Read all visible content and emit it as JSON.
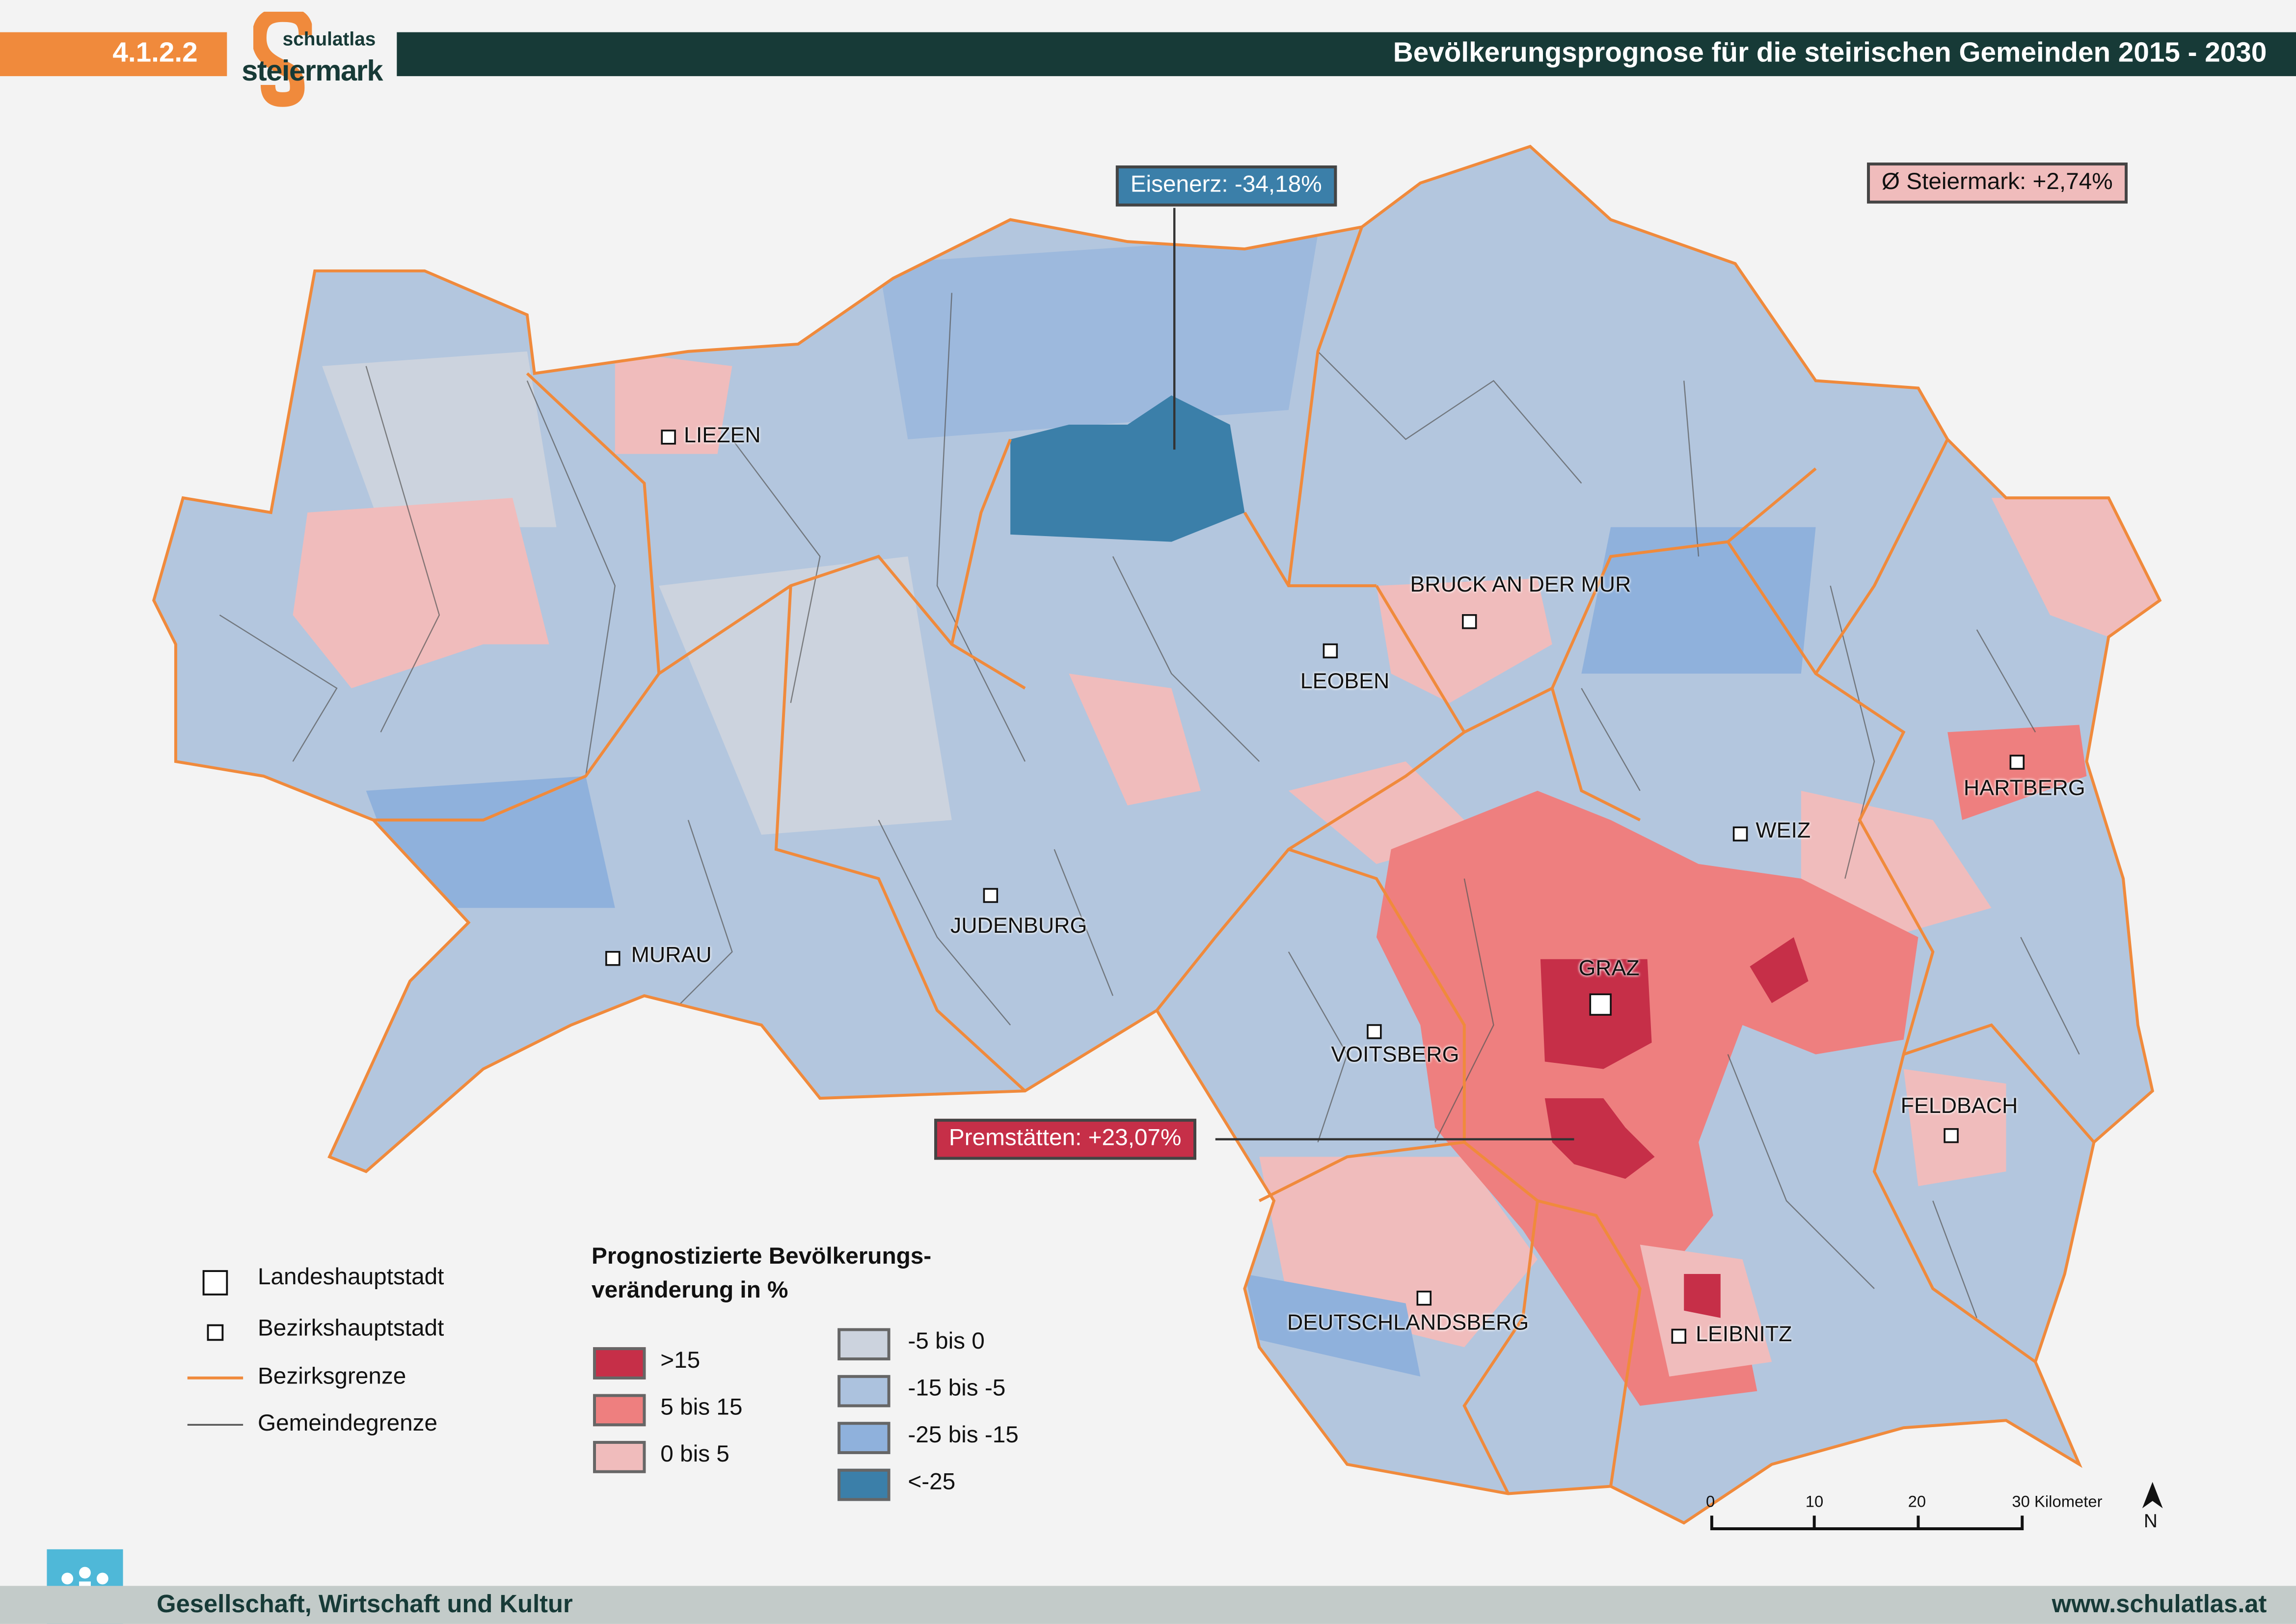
{
  "header": {
    "section_number": "4.1.2.2",
    "logo_text_top": "schulatlas",
    "logo_text_bottom": "steiermark",
    "logo_letter": "S",
    "title": "Bevölkerungsprognose für die steirischen Gemeinden 2015 - 2030"
  },
  "callouts": {
    "eisenerz": "Eisenerz: -34,18%",
    "premstaetten": "Premstätten: +23,07%",
    "average": "Ø Steiermark: +2,74%"
  },
  "cities": {
    "liezen": "LIEZEN",
    "bruck": "BRUCK AN DER MUR",
    "leoben": "LEOBEN",
    "hartberg": "HARTBERG",
    "weiz": "WEIZ",
    "judenburg": "JUDENBURG",
    "murau": "MURAU",
    "graz": "GRAZ",
    "voitsberg": "VOITSBERG",
    "feldbach": "FELDBACH",
    "deutschlandsberg": "DEUTSCHLANDSBERG",
    "leibnitz": "LEIBNITZ"
  },
  "legend_symbols": {
    "capital": "Landeshauptstadt",
    "district_capital": "Bezirkshauptstadt",
    "district_border": "Bezirksgrenze",
    "municipality_border": "Gemeindegrenze"
  },
  "legend": {
    "title_line1": "Prognostizierte Bevölkerungs-",
    "title_line2": "veränderung in %",
    "classes": [
      {
        "label": ">15",
        "color": "#c62f48"
      },
      {
        "label": "5 bis 15",
        "color": "#ee7f7f"
      },
      {
        "label": "0 bis 5",
        "color": "#f0bcbc"
      },
      {
        "label": "-5 bis 0",
        "color": "#ccd3de"
      },
      {
        "label": "-15 bis -5",
        "color": "#acc2de"
      },
      {
        "label": "-25 bis -15",
        "color": "#8fb1dc"
      },
      {
        "label": "<-25",
        "color": "#3b7fa9"
      }
    ]
  },
  "scalebar": {
    "ticks": [
      "0",
      "10",
      "20",
      "30 Kilometer"
    ],
    "north": "N"
  },
  "footer": {
    "left": "Gesellschaft, Wirtschaft und Kultur",
    "right": "www.schulatlas.at"
  },
  "colors": {
    "orange": "#f08a3c",
    "dark_green": "#173a37",
    "footer_bg": "#c3cbc9"
  }
}
